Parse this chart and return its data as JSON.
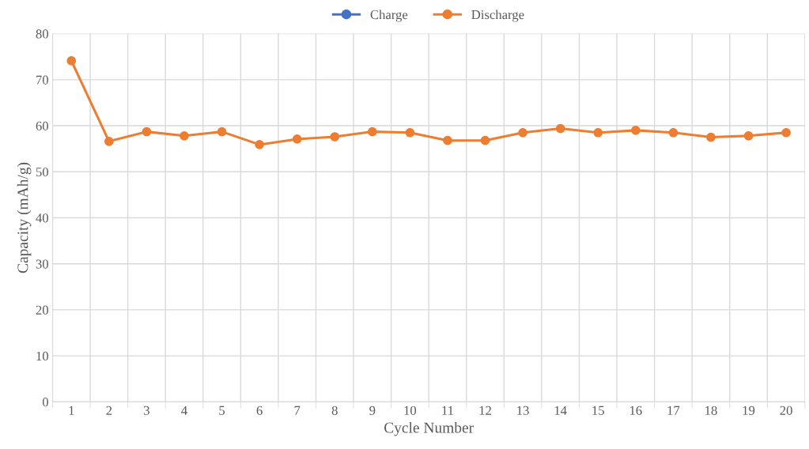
{
  "chart_data": {
    "type": "line",
    "xlabel": "Cycle Number",
    "ylabel": "Capacity (mAh/g)",
    "categories": [
      "1",
      "2",
      "3",
      "4",
      "5",
      "6",
      "7",
      "8",
      "9",
      "10",
      "11",
      "12",
      "13",
      "14",
      "15",
      "16",
      "17",
      "18",
      "19",
      "20"
    ],
    "series": [
      {
        "name": "Charge",
        "color": "#4472c4",
        "values": [
          null,
          null,
          null,
          null,
          null,
          null,
          null,
          null,
          null,
          null,
          null,
          null,
          null,
          null,
          null,
          null,
          null,
          null,
          null,
          null
        ]
      },
      {
        "name": "Discharge",
        "color": "#ed7d31",
        "values": [
          74.1,
          56.6,
          58.7,
          57.8,
          58.7,
          55.9,
          57.1,
          57.6,
          58.7,
          58.5,
          56.8,
          56.8,
          58.5,
          59.4,
          58.5,
          59.0,
          58.5,
          57.5,
          57.8,
          58.5
        ]
      }
    ],
    "ylim": [
      0,
      80
    ],
    "yticks": [
      0,
      10,
      20,
      30,
      40,
      50,
      60,
      70,
      80
    ],
    "grid": true,
    "legend": "top",
    "marker": "circle",
    "line_style": "solid"
  }
}
